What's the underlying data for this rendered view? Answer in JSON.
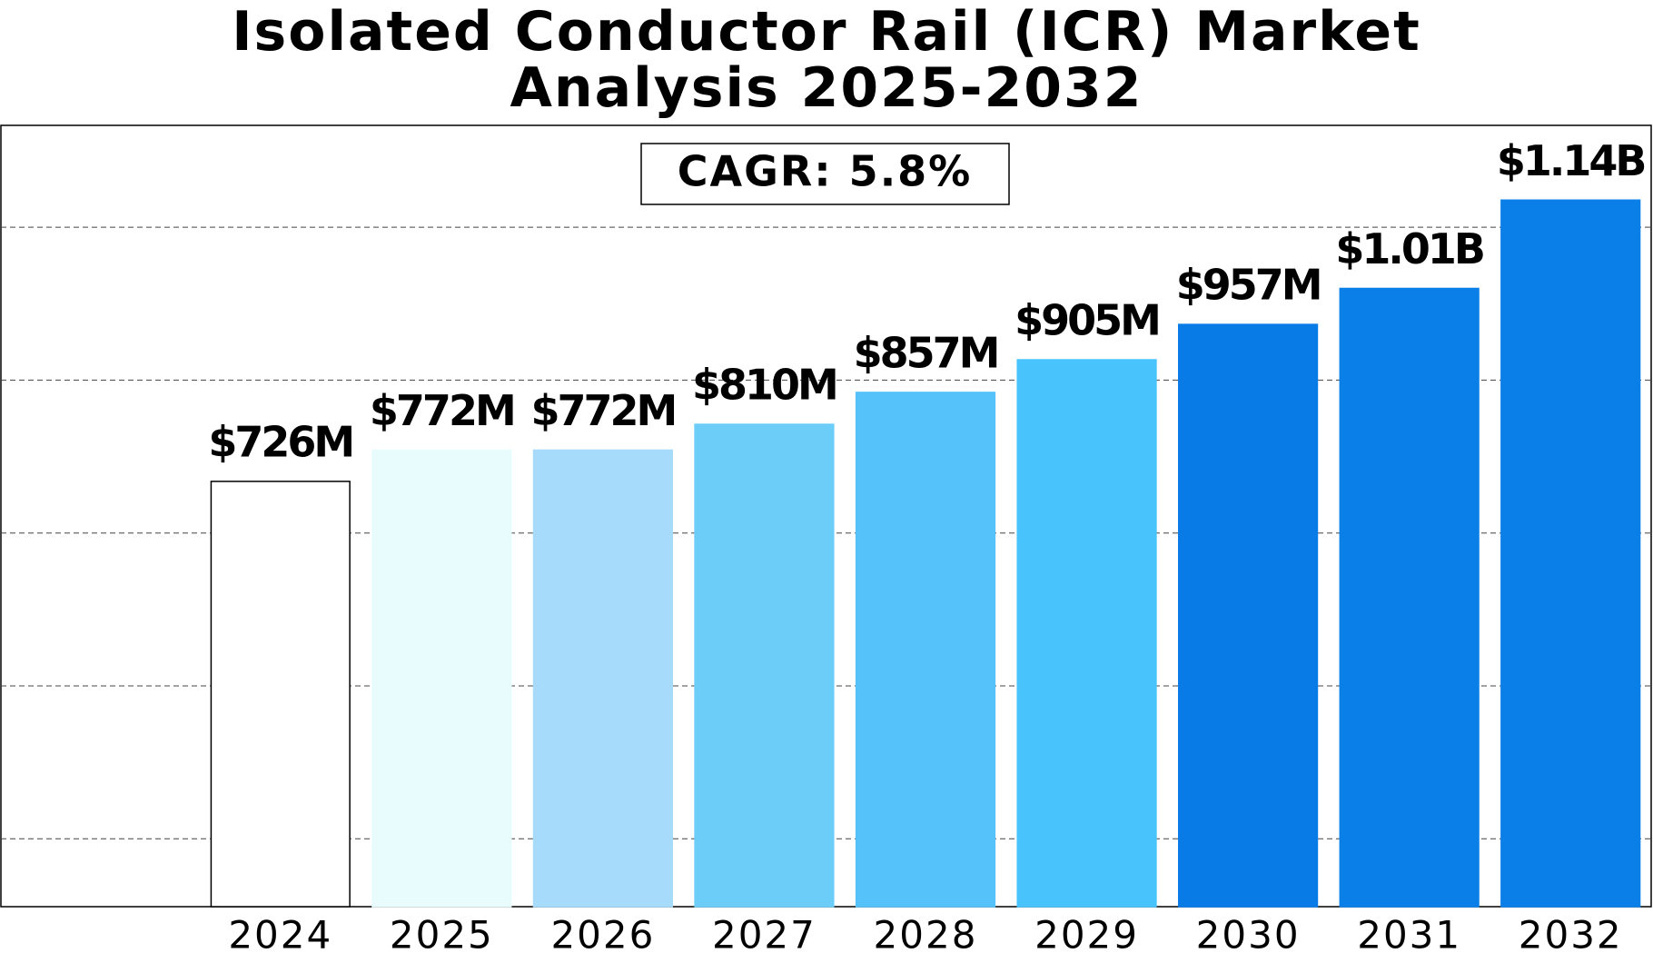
{
  "chart_data": {
    "type": "bar",
    "title": "Isolated Conductor Rail (ICR) Market Analysis 2025-2032",
    "annotation": "CAGR: 5.8%",
    "categories": [
      "2024",
      "2025",
      "2026",
      "2027",
      "2028",
      "2029",
      "2030",
      "2031",
      "2032"
    ],
    "values": [
      726,
      772,
      772,
      810,
      857,
      905,
      957,
      1010,
      1140
    ],
    "value_labels": [
      "$726M",
      "$772M",
      "$772M",
      "$810M",
      "$857M",
      "$905M",
      "$957M",
      "$1.01B",
      "$1.14B"
    ],
    "colors": [
      "#ffffff",
      "#e8fbfd",
      "#a6dbfc",
      "#6ccdf8",
      "#55c3fa",
      "#48c3fc",
      "#087be6",
      "#0a7fe8",
      "#0a7fe8"
    ],
    "ylim": [
      100,
      1250
    ],
    "yticks": [
      200,
      425,
      650,
      875,
      1100
    ],
    "grid": true
  }
}
